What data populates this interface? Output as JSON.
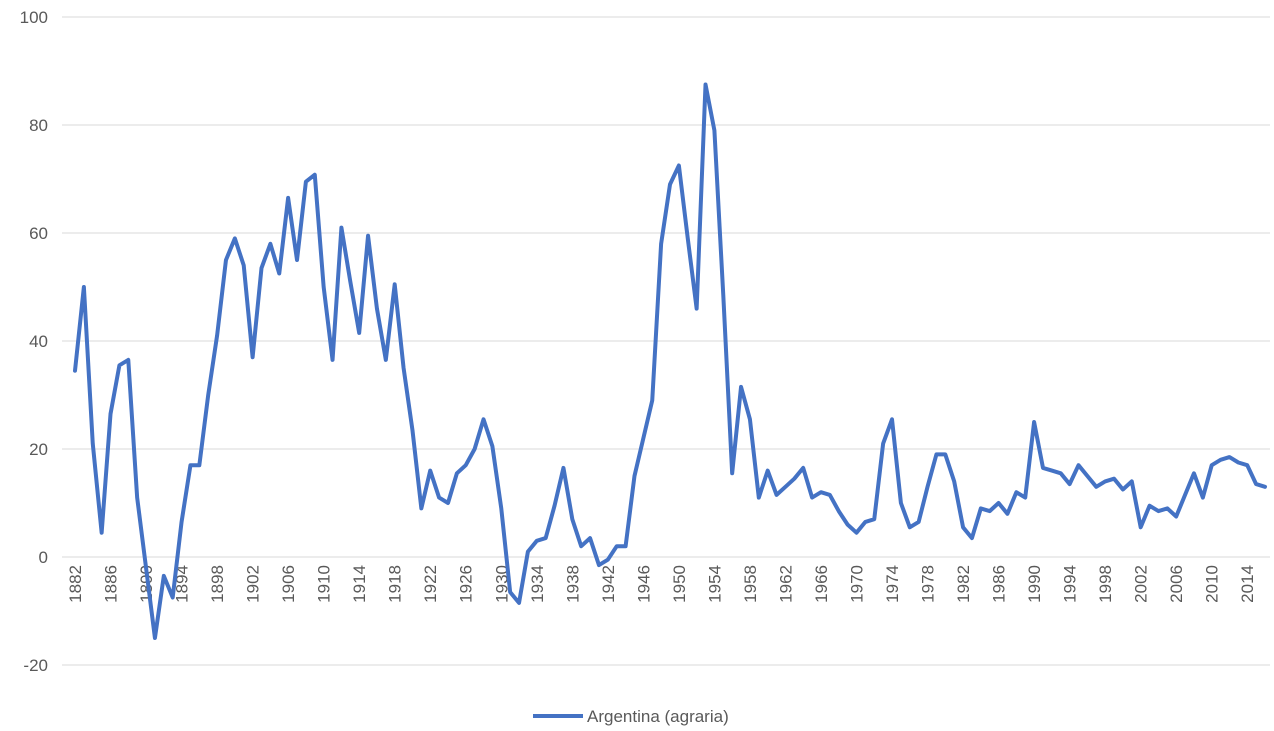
{
  "chart_data": {
    "type": "line",
    "x": [
      1882,
      1883,
      1884,
      1885,
      1886,
      1887,
      1888,
      1889,
      1890,
      1891,
      1892,
      1893,
      1894,
      1895,
      1896,
      1897,
      1898,
      1899,
      1900,
      1901,
      1902,
      1903,
      1904,
      1905,
      1906,
      1907,
      1908,
      1909,
      1910,
      1911,
      1912,
      1913,
      1914,
      1915,
      1916,
      1917,
      1918,
      1919,
      1920,
      1921,
      1922,
      1923,
      1924,
      1925,
      1926,
      1927,
      1928,
      1929,
      1930,
      1931,
      1932,
      1933,
      1934,
      1935,
      1936,
      1937,
      1938,
      1939,
      1940,
      1941,
      1942,
      1943,
      1944,
      1945,
      1946,
      1947,
      1948,
      1949,
      1950,
      1951,
      1952,
      1953,
      1954,
      1955,
      1956,
      1957,
      1958,
      1959,
      1960,
      1961,
      1962,
      1963,
      1964,
      1965,
      1966,
      1967,
      1968,
      1969,
      1970,
      1971,
      1972,
      1973,
      1974,
      1975,
      1976,
      1977,
      1978,
      1979,
      1980,
      1981,
      1982,
      1983,
      1984,
      1985,
      1986,
      1987,
      1988,
      1989,
      1990,
      1991,
      1992,
      1993,
      1994,
      1995,
      1996,
      1997,
      1998,
      1999,
      2000,
      2001,
      2002,
      2003,
      2004,
      2005,
      2006,
      2007,
      2008,
      2009,
      2010,
      2011,
      2012,
      2013,
      2014,
      2015,
      2016
    ],
    "series": [
      {
        "name": "Argentina (agraria)",
        "color": "#4472c4",
        "values": [
          34.5,
          50,
          21,
          4.5,
          26.5,
          35.5,
          36.5,
          11,
          -2,
          -15,
          -3.5,
          -7.5,
          6.5,
          17,
          17,
          30,
          41,
          55,
          59,
          54,
          37,
          53.5,
          58,
          52.5,
          66.5,
          55,
          69.5,
          70.8,
          50,
          36.5,
          61,
          51,
          41.5,
          59.5,
          46,
          36.5,
          50.5,
          35,
          23.5,
          9,
          16,
          11,
          10,
          15.5,
          17,
          20,
          25.5,
          20.5,
          9,
          -6.5,
          -8.5,
          1,
          3,
          3.5,
          9.5,
          16.5,
          7,
          2,
          3.5,
          -1.5,
          -0.5,
          2,
          2,
          15,
          22,
          29,
          58,
          69,
          72.5,
          59,
          46,
          87.5,
          79,
          48.5,
          15.5,
          31.5,
          25.5,
          11,
          16,
          11.5,
          13,
          14.5,
          16.5,
          11,
          12,
          11.5,
          8.5,
          6,
          4.5,
          6.5,
          7,
          21,
          25.5,
          10,
          5.5,
          6.5,
          13,
          19,
          19,
          14,
          5.5,
          3.5,
          9,
          8.5,
          10,
          8,
          12,
          11,
          25,
          16.5,
          16,
          15.5,
          13.5,
          17,
          15,
          13,
          14,
          14.5,
          12.5,
          14,
          5.5,
          9.5,
          8.5,
          9,
          7.5,
          11.5,
          15.5,
          11,
          17,
          18,
          18.5,
          17.5,
          17,
          13.5,
          13
        ]
      }
    ],
    "xlim": [
      1882,
      2016
    ],
    "xticks": [
      1882,
      1886,
      1890,
      1894,
      1898,
      1902,
      1906,
      1910,
      1914,
      1918,
      1922,
      1926,
      1930,
      1934,
      1938,
      1942,
      1946,
      1950,
      1954,
      1958,
      1962,
      1966,
      1970,
      1974,
      1978,
      1982,
      1986,
      1990,
      1994,
      1998,
      2002,
      2006,
      2010,
      2014
    ],
    "ylim": [
      -20,
      100
    ],
    "yticks": [
      -20,
      0,
      20,
      40,
      60,
      80,
      100
    ],
    "grid": true,
    "legend": "bottom"
  }
}
